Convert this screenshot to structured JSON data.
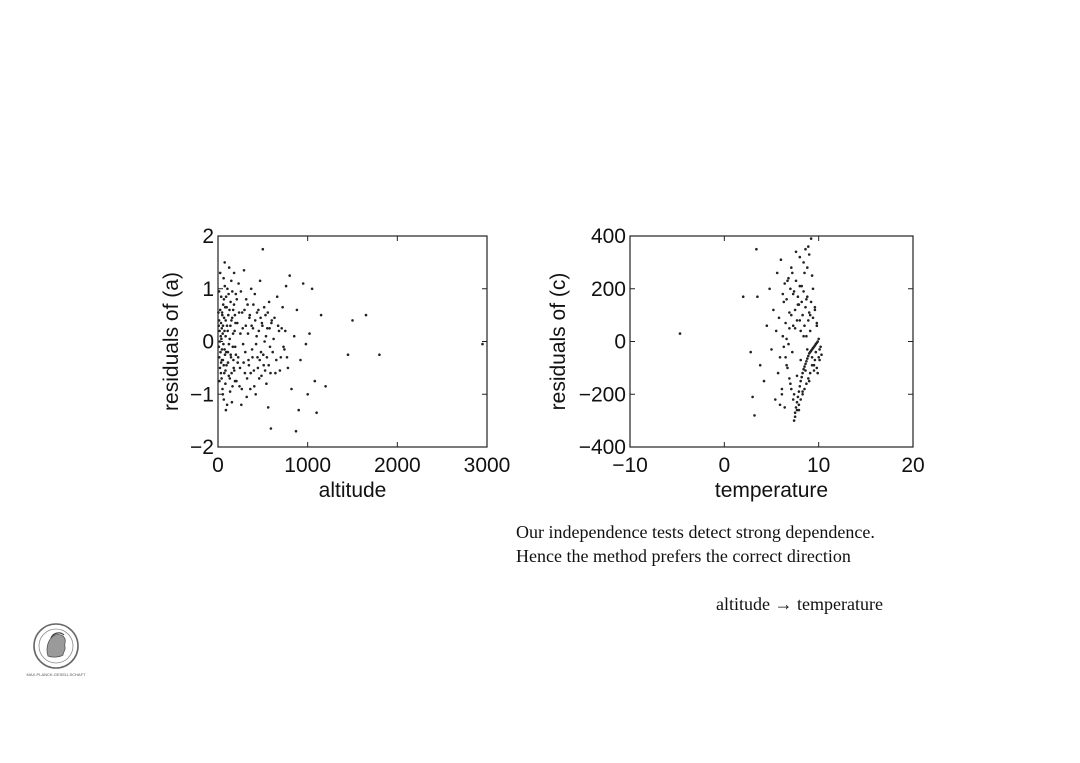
{
  "chart_data": [
    {
      "type": "scatter",
      "xlabel": "altitude",
      "ylabel": "residuals of (a)",
      "xlim": [
        0,
        3000
      ],
      "ylim": [
        -2,
        2
      ],
      "xticks": [
        0,
        1000,
        2000,
        3000
      ],
      "yticks": [
        -2,
        -1,
        0,
        1,
        2
      ],
      "xtick_labels": [
        "0",
        "1000",
        "2000",
        "3000"
      ],
      "ytick_labels": [
        "−2",
        "−1",
        "0",
        "1",
        "2"
      ],
      "grid": false,
      "points": [
        [
          5,
          0.55
        ],
        [
          8,
          0.3
        ],
        [
          10,
          -0.1
        ],
        [
          12,
          0.4
        ],
        [
          15,
          -0.3
        ],
        [
          18,
          0.2
        ],
        [
          20,
          0.0
        ],
        [
          22,
          -0.5
        ],
        [
          25,
          0.6
        ],
        [
          28,
          -0.2
        ],
        [
          30,
          0.1
        ],
        [
          33,
          0.35
        ],
        [
          35,
          -0.4
        ],
        [
          38,
          0.05
        ],
        [
          40,
          -0.7
        ],
        [
          42,
          0.25
        ],
        [
          45,
          -0.15
        ],
        [
          48,
          0.5
        ],
        [
          50,
          -0.9
        ],
        [
          52,
          0.15
        ],
        [
          55,
          -0.35
        ],
        [
          58,
          0.7
        ],
        [
          60,
          -0.05
        ],
        [
          62,
          1.2
        ],
        [
          65,
          -1.1
        ],
        [
          68,
          0.45
        ],
        [
          70,
          -0.6
        ],
        [
          72,
          0.2
        ],
        [
          75,
          1.5
        ],
        [
          78,
          -0.25
        ],
        [
          80,
          0.65
        ],
        [
          82,
          -0.8
        ],
        [
          85,
          0.1
        ],
        [
          88,
          -1.3
        ],
        [
          90,
          0.85
        ],
        [
          95,
          -0.45
        ],
        [
          100,
          0.3
        ],
        [
          105,
          1.0
        ],
        [
          110,
          -0.2
        ],
        [
          115,
          0.5
        ],
        [
          120,
          -0.65
        ],
        [
          125,
          1.4
        ],
        [
          130,
          0.05
        ],
        [
          135,
          -0.95
        ],
        [
          140,
          0.75
        ],
        [
          145,
          -0.3
        ],
        [
          150,
          0.4
        ],
        [
          155,
          -1.15
        ],
        [
          160,
          0.95
        ],
        [
          165,
          -0.1
        ],
        [
          170,
          0.6
        ],
        [
          175,
          -0.5
        ],
        [
          180,
          1.3
        ],
        [
          185,
          0.2
        ],
        [
          190,
          -0.75
        ],
        [
          195,
          0.35
        ],
        [
          200,
          -0.25
        ],
        [
          210,
          0.8
        ],
        [
          220,
          -0.4
        ],
        [
          230,
          1.1
        ],
        [
          240,
          -0.85
        ],
        [
          250,
          0.15
        ],
        [
          260,
          -1.2
        ],
        [
          270,
          0.55
        ],
        [
          280,
          -0.05
        ],
        [
          290,
          1.35
        ],
        [
          300,
          -0.6
        ],
        [
          310,
          0.3
        ],
        [
          320,
          -1.05
        ],
        [
          330,
          0.7
        ],
        [
          340,
          -0.35
        ],
        [
          350,
          0.45
        ],
        [
          360,
          -0.9
        ],
        [
          370,
          1.0
        ],
        [
          380,
          -0.15
        ],
        [
          390,
          0.25
        ],
        [
          400,
          -0.55
        ],
        [
          410,
          0.9
        ],
        [
          420,
          -1.0
        ],
        [
          430,
          0.1
        ],
        [
          440,
          -0.3
        ],
        [
          450,
          0.6
        ],
        [
          460,
          -0.7
        ],
        [
          470,
          1.15
        ],
        [
          480,
          -0.2
        ],
        [
          490,
          0.35
        ],
        [
          500,
          1.75
        ],
        [
          510,
          -0.45
        ],
        [
          520,
          0.0
        ],
        [
          530,
          0.5
        ],
        [
          540,
          -0.8
        ],
        [
          550,
          0.25
        ],
        [
          560,
          -1.25
        ],
        [
          570,
          0.75
        ],
        [
          580,
          -0.1
        ],
        [
          590,
          -1.65
        ],
        [
          600,
          0.4
        ],
        [
          620,
          0.05
        ],
        [
          640,
          -0.6
        ],
        [
          660,
          0.85
        ],
        [
          680,
          0.2
        ],
        [
          700,
          -0.3
        ],
        [
          720,
          0.65
        ],
        [
          740,
          -0.15
        ],
        [
          760,
          1.05
        ],
        [
          780,
          -0.5
        ],
        [
          800,
          1.25
        ],
        [
          820,
          -0.9
        ],
        [
          850,
          0.1
        ],
        [
          870,
          -1.7
        ],
        [
          880,
          0.6
        ],
        [
          900,
          -1.3
        ],
        [
          920,
          -0.35
        ],
        [
          950,
          1.1
        ],
        [
          980,
          -0.05
        ],
        [
          1000,
          -1.0
        ],
        [
          1020,
          0.15
        ],
        [
          1050,
          1.0
        ],
        [
          1080,
          -0.75
        ],
        [
          1100,
          -1.35
        ],
        [
          1150,
          0.5
        ],
        [
          1200,
          -0.85
        ],
        [
          1450,
          -0.25
        ],
        [
          1500,
          0.4
        ],
        [
          1650,
          0.5
        ],
        [
          1800,
          -0.25
        ],
        [
          2950,
          -0.05
        ],
        [
          12,
          0.95
        ],
        [
          16,
          -0.75
        ],
        [
          24,
          1.3
        ],
        [
          32,
          -0.6
        ],
        [
          36,
          0.85
        ],
        [
          44,
          -0.35
        ],
        [
          46,
          0.55
        ],
        [
          54,
          -1.0
        ],
        [
          56,
          0.3
        ],
        [
          64,
          -0.45
        ],
        [
          66,
          0.8
        ],
        [
          74,
          -0.15
        ],
        [
          76,
          1.05
        ],
        [
          84,
          -0.55
        ],
        [
          86,
          0.4
        ],
        [
          92,
          -0.2
        ],
        [
          96,
          0.65
        ],
        [
          102,
          -1.2
        ],
        [
          108,
          0.2
        ],
        [
          112,
          -0.4
        ],
        [
          118,
          0.9
        ],
        [
          122,
          -0.05
        ],
        [
          128,
          0.6
        ],
        [
          132,
          -0.7
        ],
        [
          138,
          0.3
        ],
        [
          142,
          -0.25
        ],
        [
          148,
          1.15
        ],
        [
          152,
          -0.6
        ],
        [
          158,
          0.45
        ],
        [
          162,
          -0.85
        ],
        [
          168,
          0.15
        ],
        [
          172,
          -0.35
        ],
        [
          178,
          0.7
        ],
        [
          182,
          -0.55
        ],
        [
          188,
          0.5
        ],
        [
          192,
          -0.1
        ],
        [
          198,
          0.9
        ],
        [
          205,
          -0.75
        ],
        [
          215,
          0.35
        ],
        [
          225,
          -0.3
        ],
        [
          235,
          0.55
        ],
        [
          245,
          -0.5
        ],
        [
          255,
          0.95
        ],
        [
          265,
          -0.9
        ],
        [
          275,
          0.25
        ],
        [
          285,
          -0.4
        ],
        [
          295,
          0.6
        ],
        [
          305,
          -0.2
        ],
        [
          315,
          0.8
        ],
        [
          325,
          -0.7
        ],
        [
          335,
          0.15
        ],
        [
          345,
          -0.45
        ],
        [
          355,
          0.5
        ],
        [
          365,
          -0.6
        ],
        [
          375,
          0.3
        ],
        [
          385,
          -0.3
        ],
        [
          395,
          0.7
        ],
        [
          405,
          -0.85
        ],
        [
          415,
          0.4
        ],
        [
          425,
          -0.05
        ],
        [
          435,
          0.55
        ],
        [
          445,
          -0.5
        ],
        [
          455,
          0.2
        ],
        [
          465,
          -0.35
        ],
        [
          475,
          0.45
        ],
        [
          485,
          -0.65
        ],
        [
          495,
          0.3
        ],
        [
          505,
          -0.25
        ],
        [
          515,
          0.65
        ],
        [
          525,
          -0.55
        ],
        [
          535,
          0.1
        ],
        [
          545,
          -0.3
        ],
        [
          555,
          0.55
        ],
        [
          565,
          -0.45
        ],
        [
          575,
          0.25
        ],
        [
          585,
          -0.6
        ],
        [
          595,
          0.35
        ],
        [
          610,
          -0.2
        ],
        [
          630,
          0.45
        ],
        [
          650,
          -0.35
        ],
        [
          670,
          0.3
        ],
        [
          690,
          -0.55
        ],
        [
          710,
          0.25
        ],
        [
          730,
          -0.1
        ],
        [
          750,
          0.2
        ],
        [
          770,
          -0.3
        ]
      ]
    },
    {
      "type": "scatter",
      "xlabel": "temperature",
      "ylabel": "residuals of (c)",
      "xlim": [
        -10,
        20
      ],
      "ylim": [
        -400,
        400
      ],
      "xticks": [
        -10,
        0,
        10,
        20
      ],
      "yticks": [
        -400,
        -200,
        0,
        200,
        400
      ],
      "xtick_labels": [
        "−10",
        "0",
        "10",
        "20"
      ],
      "ytick_labels": [
        "−400",
        "−200",
        "0",
        "200",
        "400"
      ],
      "grid": false,
      "points": [
        [
          -4.7,
          30
        ],
        [
          2.0,
          170
        ],
        [
          3.5,
          170
        ],
        [
          3.4,
          350
        ],
        [
          2.8,
          -40
        ],
        [
          3.0,
          -210
        ],
        [
          3.2,
          -280
        ],
        [
          3.8,
          -90
        ],
        [
          4.2,
          -150
        ],
        [
          4.5,
          60
        ],
        [
          4.8,
          200
        ],
        [
          5.0,
          -30
        ],
        [
          5.2,
          120
        ],
        [
          5.4,
          -220
        ],
        [
          5.5,
          40
        ],
        [
          5.6,
          260
        ],
        [
          5.7,
          -120
        ],
        [
          5.8,
          90
        ],
        [
          5.9,
          -60
        ],
        [
          6.0,
          310
        ],
        [
          6.1,
          -180
        ],
        [
          6.2,
          20
        ],
        [
          6.3,
          150
        ],
        [
          6.4,
          -250
        ],
        [
          6.5,
          70
        ],
        [
          6.6,
          -90
        ],
        [
          6.7,
          230
        ],
        [
          6.8,
          -10
        ],
        [
          6.9,
          110
        ],
        [
          7.0,
          -160
        ],
        [
          7.1,
          280
        ],
        [
          7.2,
          -40
        ],
        [
          7.3,
          180
        ],
        [
          7.4,
          -200
        ],
        [
          7.5,
          50
        ],
        [
          7.6,
          340
        ],
        [
          7.7,
          -130
        ],
        [
          7.8,
          140
        ],
        [
          7.9,
          -260
        ],
        [
          8.0,
          80
        ],
        [
          8.1,
          -70
        ],
        [
          8.2,
          210
        ],
        [
          8.3,
          -190
        ],
        [
          8.4,
          20
        ],
        [
          8.5,
          260
        ],
        [
          8.6,
          -110
        ],
        [
          8.7,
          160
        ],
        [
          8.8,
          -30
        ],
        [
          8.9,
          360
        ],
        [
          9.0,
          -150
        ],
        [
          9.1,
          100
        ],
        [
          9.2,
          390
        ],
        [
          9.3,
          -60
        ],
        [
          9.4,
          200
        ],
        [
          9.5,
          -90
        ],
        [
          9.6,
          130
        ],
        [
          9.7,
          -40
        ],
        [
          9.8,
          60
        ],
        [
          9.9,
          -120
        ],
        [
          10.0,
          10
        ],
        [
          10.1,
          -70
        ],
        [
          7.4,
          -300
        ],
        [
          7.5,
          -270
        ],
        [
          7.6,
          -250
        ],
        [
          7.7,
          -230
        ],
        [
          7.8,
          -210
        ],
        [
          7.9,
          -190
        ],
        [
          8.0,
          -170
        ],
        [
          8.1,
          -150
        ],
        [
          8.2,
          -135
        ],
        [
          8.3,
          -120
        ],
        [
          8.4,
          -105
        ],
        [
          8.5,
          -95
        ],
        [
          8.6,
          -85
        ],
        [
          8.7,
          -75
        ],
        [
          8.8,
          -65
        ],
        [
          8.9,
          -55
        ],
        [
          9.0,
          -45
        ],
        [
          9.1,
          -40
        ],
        [
          9.2,
          -35
        ],
        [
          9.3,
          -30
        ],
        [
          9.4,
          -25
        ],
        [
          9.5,
          -20
        ],
        [
          9.6,
          -15
        ],
        [
          9.7,
          -10
        ],
        [
          9.8,
          -5
        ],
        [
          9.9,
          0
        ],
        [
          10.0,
          -60
        ],
        [
          10.1,
          -30
        ],
        [
          9.5,
          -110
        ],
        [
          9.3,
          -90
        ],
        [
          9.6,
          -70
        ],
        [
          9.8,
          -100
        ],
        [
          10.2,
          -20
        ],
        [
          10.3,
          -50
        ],
        [
          9.1,
          -120
        ],
        [
          8.9,
          -140
        ],
        [
          8.7,
          -160
        ],
        [
          8.5,
          -180
        ],
        [
          8.3,
          -200
        ],
        [
          8.1,
          -220
        ],
        [
          7.9,
          -240
        ],
        [
          7.7,
          -260
        ],
        [
          7.5,
          -285
        ],
        [
          6.2,
          180
        ],
        [
          6.4,
          220
        ],
        [
          6.6,
          160
        ],
        [
          6.8,
          240
        ],
        [
          7.0,
          200
        ],
        [
          7.2,
          260
        ],
        [
          7.4,
          190
        ],
        [
          7.6,
          230
        ],
        [
          7.8,
          170
        ],
        [
          8.0,
          210
        ],
        [
          8.2,
          150
        ],
        [
          8.4,
          190
        ],
        [
          8.6,
          130
        ],
        [
          8.8,
          170
        ],
        [
          9.0,
          110
        ],
        [
          9.2,
          150
        ],
        [
          9.4,
          90
        ],
        [
          9.6,
          120
        ],
        [
          9.8,
          70
        ],
        [
          7.1,
          100
        ],
        [
          7.3,
          60
        ],
        [
          7.5,
          120
        ],
        [
          7.7,
          80
        ],
        [
          7.9,
          140
        ],
        [
          8.1,
          40
        ],
        [
          8.3,
          100
        ],
        [
          8.5,
          60
        ],
        [
          8.7,
          20
        ],
        [
          8.9,
          80
        ],
        [
          9.1,
          40
        ],
        [
          6.5,
          -60
        ],
        [
          6.7,
          -100
        ],
        [
          6.9,
          -140
        ],
        [
          7.1,
          -180
        ],
        [
          7.3,
          -220
        ],
        [
          6.3,
          -20
        ],
        [
          6.1,
          -200
        ],
        [
          5.9,
          -240
        ],
        [
          6.6,
          10
        ],
        [
          6.9,
          50
        ],
        [
          8.0,
          320
        ],
        [
          8.4,
          300
        ],
        [
          8.8,
          280
        ],
        [
          9.3,
          250
        ],
        [
          9.0,
          330
        ],
        [
          8.6,
          350
        ]
      ]
    }
  ],
  "caption": {
    "line1": "Our independence tests detect strong dependence.",
    "line2": "Hence the method prefers the correct direction",
    "conclusion": "altitude → temperature"
  },
  "logo": {
    "icon": "max-planck-minerva-seal",
    "text": "MAX-PLANCK-GESELLSCHAFT"
  }
}
